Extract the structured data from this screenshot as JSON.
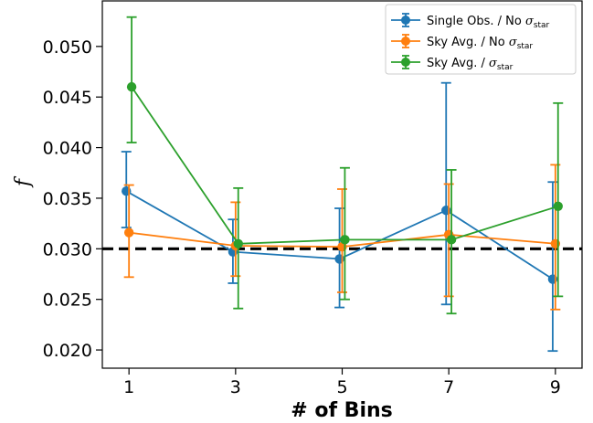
{
  "chart_data": {
    "type": "line",
    "xlabel": "# of Bins",
    "ylabel": "f",
    "x": [
      1,
      3,
      5,
      7,
      9
    ],
    "xticks": [
      "1",
      "3",
      "5",
      "7",
      "9"
    ],
    "yticks": [
      "0.020",
      "0.025",
      "0.030",
      "0.035",
      "0.040",
      "0.045",
      "0.050"
    ],
    "xlim": [
      0.5,
      9.5
    ],
    "ylim": [
      0.0182,
      0.0545
    ],
    "reference_line": {
      "y": 0.03,
      "style": "dashed",
      "color": "#000000"
    },
    "legend_position": "top-right",
    "series": [
      {
        "name_main": "Single Obs. / No ",
        "name_sym": "σ",
        "name_sub": "star",
        "color": "#1f77b4",
        "offset": -0.05,
        "values": [
          0.0357,
          0.0297,
          0.029,
          0.0338,
          0.027
        ],
        "err_low": [
          0.0321,
          0.0266,
          0.0242,
          0.0245,
          0.0199
        ],
        "err_high": [
          0.0396,
          0.0329,
          0.034,
          0.0464,
          0.0366
        ]
      },
      {
        "name_main": "Sky Avg. / No ",
        "name_sym": "σ",
        "name_sub": "star",
        "color": "#ff7f0e",
        "offset": 0.0,
        "values": [
          0.0316,
          0.0303,
          0.0302,
          0.0314,
          0.0305
        ],
        "err_low": [
          0.0272,
          0.0273,
          0.0257,
          0.0253,
          0.024
        ],
        "err_high": [
          0.0363,
          0.0346,
          0.0359,
          0.0364,
          0.0383
        ]
      },
      {
        "name_main": "Sky Avg. / ",
        "name_sym": "σ",
        "name_sub": "star",
        "color": "#2ca02c",
        "offset": 0.05,
        "values": [
          0.046,
          0.0305,
          0.0309,
          0.0309,
          0.0342
        ],
        "err_low": [
          0.0405,
          0.0241,
          0.025,
          0.0236,
          0.0253
        ],
        "err_high": [
          0.0529,
          0.036,
          0.038,
          0.0378,
          0.0444
        ]
      }
    ]
  }
}
